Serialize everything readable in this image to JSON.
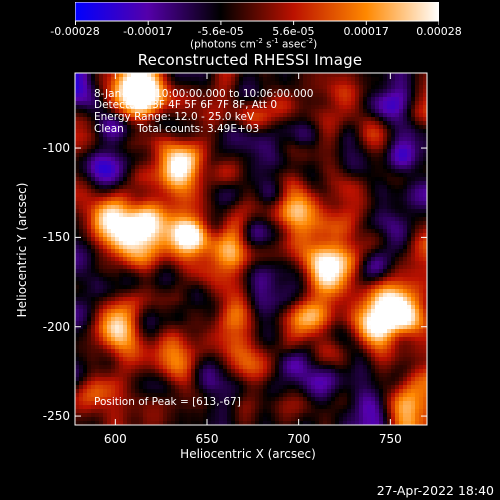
{
  "chart_data": {
    "type": "heatmap",
    "title": "Reconstructed RHESSI Image",
    "xlabel": "Heliocentric X (arcsec)",
    "ylabel": "Heliocentric Y (arcsec)",
    "xlim": [
      578,
      770
    ],
    "ylim": [
      -255,
      -58
    ],
    "x_ticks": [
      "600",
      "650",
      "700",
      "750"
    ],
    "y_ticks": [
      "-100",
      "-150",
      "-200",
      "-250"
    ],
    "colorbar": {
      "range": [
        -0.00028,
        0.00028
      ],
      "tick_labels": [
        "-0.00028",
        "-0.00017",
        "-5.6e-05",
        "5.6e-05",
        "0.00017",
        "0.00028"
      ],
      "unit_label": "(photons cm-2 s-1 asec-2)",
      "colormap": [
        "#0000ff",
        "#5500aa",
        "#000000",
        "#bb1100",
        "#ff8800",
        "#ffffff"
      ]
    },
    "annotations": [
      "8-Jan-2003 10:00:00.000 to 10:06:00.000",
      "Detectors: 3F 4F 5F 6F 7F 8F, Att 0",
      "Energy Range: 12.0 - 25.0 keV",
      "Clean    Total counts: 3.49E+03"
    ],
    "peak_label": "Position of Peak = [613,-67]",
    "hot_regions": [
      {
        "x": 613,
        "y": -67,
        "intensity": 1.0
      },
      {
        "x": 755,
        "y": -190,
        "intensity": 0.95
      },
      {
        "x": 740,
        "y": -200,
        "intensity": 0.85
      },
      {
        "x": 720,
        "y": -165,
        "intensity": 0.8
      },
      {
        "x": 700,
        "y": -135,
        "intensity": 0.7
      },
      {
        "x": 635,
        "y": -112,
        "intensity": 0.8
      },
      {
        "x": 640,
        "y": -148,
        "intensity": 0.85
      },
      {
        "x": 615,
        "y": -145,
        "intensity": 0.75
      },
      {
        "x": 600,
        "y": -140,
        "intensity": 0.6
      },
      {
        "x": 600,
        "y": -200,
        "intensity": 0.6
      },
      {
        "x": 630,
        "y": -220,
        "intensity": 0.55
      },
      {
        "x": 705,
        "y": -195,
        "intensity": 0.6
      },
      {
        "x": 660,
        "y": -160,
        "intensity": 0.55
      },
      {
        "x": 590,
        "y": -235,
        "intensity": 0.5
      },
      {
        "x": 665,
        "y": -190,
        "intensity": 0.45
      }
    ]
  },
  "footer": {
    "timestamp": "27-Apr-2022 18:40"
  }
}
